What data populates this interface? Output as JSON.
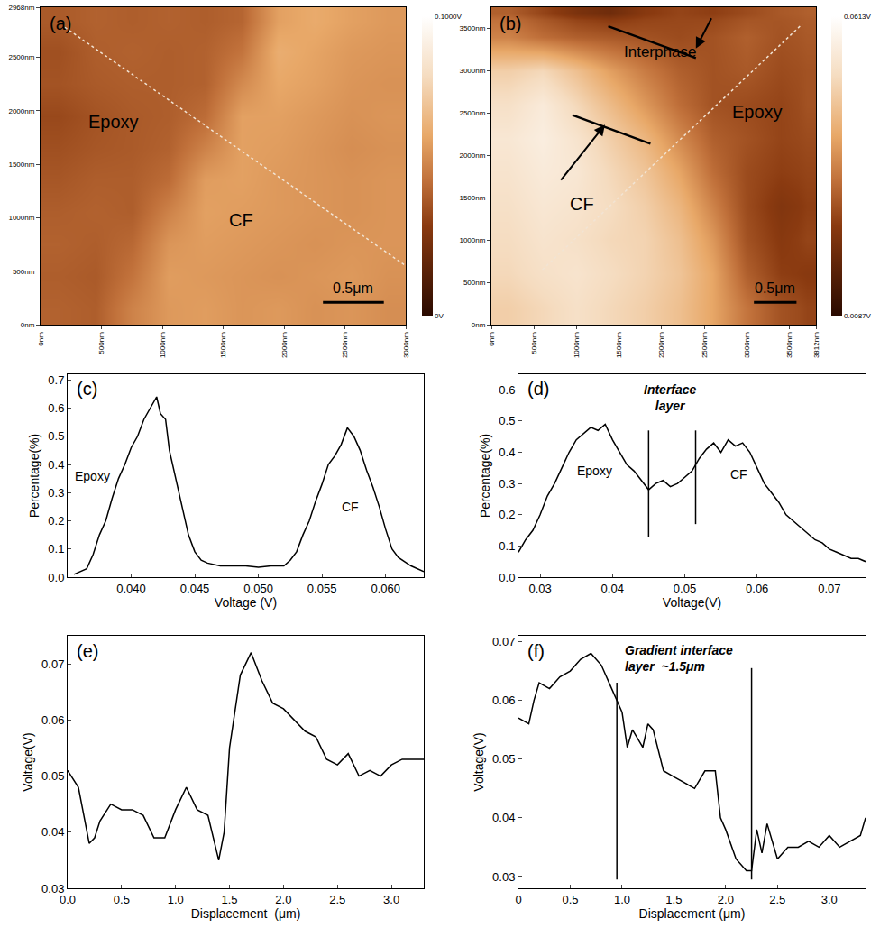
{
  "chart_data": [
    {
      "panel": "(a)",
      "type": "heatmap",
      "x_edges": [
        0,
        300,
        600,
        900,
        1200,
        1500,
        1800,
        2100,
        2400,
        2700,
        3000
      ],
      "y_edges": [
        0,
        300,
        600,
        900,
        1200,
        1500,
        1800,
        2100,
        2400,
        2700,
        2968
      ],
      "z": [
        [
          0.041,
          0.04,
          0.05,
          0.056,
          0.057,
          0.055,
          0.056,
          0.054,
          0.055,
          0.053
        ],
        [
          0.04,
          0.039,
          0.046,
          0.057,
          0.056,
          0.055,
          0.054,
          0.055,
          0.056,
          0.054
        ],
        [
          0.041,
          0.04,
          0.043,
          0.055,
          0.057,
          0.056,
          0.055,
          0.054,
          0.055,
          0.055
        ],
        [
          0.04,
          0.041,
          0.04,
          0.05,
          0.058,
          0.057,
          0.056,
          0.055,
          0.054,
          0.055
        ],
        [
          0.038,
          0.04,
          0.04,
          0.044,
          0.057,
          0.058,
          0.056,
          0.055,
          0.054,
          0.055
        ],
        [
          0.036,
          0.038,
          0.039,
          0.041,
          0.05,
          0.058,
          0.057,
          0.055,
          0.053,
          0.054
        ],
        [
          0.034,
          0.037,
          0.039,
          0.04,
          0.044,
          0.058,
          0.058,
          0.056,
          0.054,
          0.055
        ],
        [
          0.037,
          0.039,
          0.04,
          0.04,
          0.041,
          0.052,
          0.06,
          0.058,
          0.055,
          0.054
        ],
        [
          0.036,
          0.04,
          0.041,
          0.04,
          0.041,
          0.046,
          0.062,
          0.059,
          0.056,
          0.055
        ],
        [
          0.039,
          0.041,
          0.04,
          0.041,
          0.04,
          0.042,
          0.058,
          0.061,
          0.058,
          0.056
        ]
      ],
      "zlim": [
        0,
        0.1
      ],
      "zticks": [
        {
          "value": 0,
          "label": "0V"
        },
        {
          "value": 0.1,
          "label": "0.1000V"
        }
      ],
      "xlim": [
        0,
        3000
      ],
      "xticks": [
        {
          "value": 0,
          "label": "0nm"
        },
        {
          "value": 500,
          "label": "500nm"
        },
        {
          "value": 1000,
          "label": "1000nm"
        },
        {
          "value": 1500,
          "label": "1500nm"
        },
        {
          "value": 2000,
          "label": "2000nm"
        },
        {
          "value": 2500,
          "label": "2500nm"
        },
        {
          "value": 3000,
          "label": "3000nm"
        }
      ],
      "ylim": [
        0,
        2968
      ],
      "yticks": [
        {
          "value": 0,
          "label": "0nm"
        },
        {
          "value": 500,
          "label": "500nm"
        },
        {
          "value": 1000,
          "label": "1000nm"
        },
        {
          "value": 1500,
          "label": "1500nm"
        },
        {
          "value": 2000,
          "label": "2000nm"
        },
        {
          "value": 2500,
          "label": "2500nm"
        },
        {
          "value": 2968,
          "label": "2968nm"
        }
      ],
      "profile": {
        "x": [
          200,
          3000
        ],
        "y": [
          2780,
          550
        ],
        "line_style": "dot"
      },
      "scale_bar": {
        "label": "0.5μm",
        "length": 500
      },
      "annotations": [
        {
          "lines": [
            "Epoxy"
          ]
        },
        {
          "lines": [
            "CF"
          ]
        }
      ]
    },
    {
      "panel": "(b)",
      "type": "heatmap",
      "x_edges": [
        0,
        400,
        800,
        1200,
        1600,
        2000,
        2400,
        2800,
        3200,
        3600,
        3812
      ],
      "y_edges": [
        0,
        400,
        800,
        1200,
        1600,
        2000,
        2400,
        2800,
        3200,
        3600,
        3750
      ],
      "z": [
        [
          0.048,
          0.05,
          0.052,
          0.05,
          0.048,
          0.045,
          0.04,
          0.033,
          0.028,
          0.026
        ],
        [
          0.05,
          0.052,
          0.053,
          0.051,
          0.049,
          0.046,
          0.04,
          0.03,
          0.025,
          0.024
        ],
        [
          0.051,
          0.053,
          0.052,
          0.05,
          0.049,
          0.045,
          0.038,
          0.028,
          0.024,
          0.026
        ],
        [
          0.052,
          0.054,
          0.053,
          0.051,
          0.048,
          0.043,
          0.035,
          0.027,
          0.023,
          0.025
        ],
        [
          0.053,
          0.055,
          0.054,
          0.05,
          0.046,
          0.04,
          0.032,
          0.027,
          0.025,
          0.026
        ],
        [
          0.054,
          0.056,
          0.053,
          0.048,
          0.043,
          0.036,
          0.03,
          0.028,
          0.026,
          0.027
        ],
        [
          0.052,
          0.055,
          0.05,
          0.044,
          0.038,
          0.032,
          0.028,
          0.027,
          0.026,
          0.028
        ],
        [
          0.048,
          0.05,
          0.045,
          0.039,
          0.034,
          0.03,
          0.028,
          0.029,
          0.027,
          0.028
        ],
        [
          0.035,
          0.032,
          0.03,
          0.029,
          0.028,
          0.027,
          0.028,
          0.03,
          0.028,
          0.029
        ],
        [
          0.03,
          0.026,
          0.022,
          0.02,
          0.024,
          0.026,
          0.025,
          0.027,
          0.029,
          0.03
        ]
      ],
      "zlim": [
        0.0087,
        0.0613
      ],
      "zticks": [
        {
          "value": 0.0087,
          "label": "0.0087V"
        },
        {
          "value": 0.0613,
          "label": "0.0613V"
        }
      ],
      "xlim": [
        0,
        3812
      ],
      "xticks": [
        {
          "value": 0,
          "label": "0nm"
        },
        {
          "value": 500,
          "label": "500nm"
        },
        {
          "value": 1000,
          "label": "1000nm"
        },
        {
          "value": 1500,
          "label": "1500nm"
        },
        {
          "value": 2000,
          "label": "2000nm"
        },
        {
          "value": 2500,
          "label": "2500nm"
        },
        {
          "value": 3000,
          "label": "3000nm"
        },
        {
          "value": 3500,
          "label": "3500nm"
        },
        {
          "value": 3812,
          "label": "3812nm"
        }
      ],
      "ylim": [
        0,
        3750
      ],
      "yticks": [
        {
          "value": 0,
          "label": "0nm"
        },
        {
          "value": 500,
          "label": "500nm"
        },
        {
          "value": 1000,
          "label": "1000nm"
        },
        {
          "value": 1500,
          "label": "1500nm"
        },
        {
          "value": 2000,
          "label": "2000nm"
        },
        {
          "value": 2500,
          "label": "2500nm"
        },
        {
          "value": 3000,
          "label": "3000nm"
        },
        {
          "value": 3500,
          "label": "3500nm"
        }
      ],
      "profile": {
        "x": [
          600,
          3650
        ],
        "y": [
          650,
          3550
        ],
        "line_style": "dot"
      },
      "scale_bar": {
        "label": "0.5μm",
        "length": 500
      },
      "annotations": [
        {
          "lines": [
            "Epoxy"
          ]
        },
        {
          "lines": [
            "CF"
          ]
        },
        {
          "lines": [
            "Interphase"
          ]
        }
      ]
    },
    {
      "panel": "(c)",
      "type": "line",
      "color": "#000000",
      "grid": false,
      "x": [
        0.0355,
        0.0365,
        0.037,
        0.0375,
        0.038,
        0.0385,
        0.039,
        0.0395,
        0.04,
        0.0405,
        0.041,
        0.0415,
        0.042,
        0.0423,
        0.0427,
        0.043,
        0.0435,
        0.044,
        0.0445,
        0.045,
        0.0455,
        0.046,
        0.047,
        0.048,
        0.049,
        0.05,
        0.051,
        0.052,
        0.0525,
        0.053,
        0.0535,
        0.054,
        0.0545,
        0.055,
        0.0555,
        0.056,
        0.0565,
        0.057,
        0.0575,
        0.058,
        0.0585,
        0.059,
        0.0595,
        0.06,
        0.0605,
        0.061,
        0.062,
        0.063
      ],
      "values": [
        0.01,
        0.03,
        0.08,
        0.15,
        0.2,
        0.28,
        0.35,
        0.4,
        0.46,
        0.5,
        0.56,
        0.6,
        0.64,
        0.58,
        0.56,
        0.45,
        0.35,
        0.25,
        0.15,
        0.09,
        0.06,
        0.05,
        0.04,
        0.04,
        0.04,
        0.035,
        0.04,
        0.04,
        0.06,
        0.09,
        0.15,
        0.2,
        0.27,
        0.33,
        0.4,
        0.43,
        0.47,
        0.53,
        0.5,
        0.45,
        0.38,
        0.32,
        0.25,
        0.17,
        0.1,
        0.07,
        0.04,
        0.02
      ],
      "xlim": [
        0.035,
        0.063
      ],
      "xticks": [
        {
          "value": 0.04,
          "label": "0.040"
        },
        {
          "value": 0.045,
          "label": "0.045"
        },
        {
          "value": 0.05,
          "label": "0.050"
        },
        {
          "value": 0.055,
          "label": "0.055"
        },
        {
          "value": 0.06,
          "label": "0.060"
        }
      ],
      "ylim": [
        0,
        0.72
      ],
      "yticks": [
        {
          "value": 0,
          "label": "0.0"
        },
        0.1,
        0.2,
        0.3,
        0.4,
        0.5,
        0.6,
        0.7
      ],
      "x_label": "Voltage (V)",
      "y_label": "Percentage(%)",
      "annotations": [
        {
          "lines": [
            "Epoxy"
          ]
        },
        {
          "lines": [
            "CF"
          ]
        }
      ]
    },
    {
      "panel": "(d)",
      "type": "line",
      "color": "#000000",
      "grid": false,
      "x": [
        0.027,
        0.028,
        0.029,
        0.03,
        0.031,
        0.032,
        0.033,
        0.034,
        0.035,
        0.036,
        0.037,
        0.038,
        0.039,
        0.04,
        0.041,
        0.042,
        0.043,
        0.044,
        0.045,
        0.046,
        0.047,
        0.048,
        0.049,
        0.05,
        0.051,
        0.052,
        0.053,
        0.054,
        0.055,
        0.056,
        0.057,
        0.058,
        0.059,
        0.06,
        0.061,
        0.062,
        0.063,
        0.064,
        0.065,
        0.066,
        0.067,
        0.068,
        0.069,
        0.07,
        0.071,
        0.072,
        0.073,
        0.074,
        0.075
      ],
      "values": [
        0.08,
        0.12,
        0.15,
        0.2,
        0.26,
        0.3,
        0.35,
        0.4,
        0.44,
        0.46,
        0.48,
        0.47,
        0.49,
        0.44,
        0.4,
        0.36,
        0.34,
        0.31,
        0.28,
        0.3,
        0.31,
        0.29,
        0.3,
        0.32,
        0.34,
        0.38,
        0.41,
        0.43,
        0.4,
        0.44,
        0.42,
        0.43,
        0.4,
        0.35,
        0.3,
        0.27,
        0.24,
        0.2,
        0.18,
        0.16,
        0.14,
        0.12,
        0.11,
        0.09,
        0.08,
        0.07,
        0.06,
        0.06,
        0.05
      ],
      "xlim": [
        0.027,
        0.075
      ],
      "xticks": [
        0.03,
        0.04,
        0.05,
        0.06,
        0.07
      ],
      "ylim": [
        0,
        0.65
      ],
      "yticks": [
        {
          "value": 0,
          "label": "0.0"
        },
        0.1,
        0.2,
        0.3,
        0.4,
        0.5,
        0.6
      ],
      "x_label": "Voltage(V)",
      "y_label": "Percentage(%)",
      "interface_lines": [
        {
          "x": 0.045,
          "y": [
            0.13,
            0.47
          ]
        },
        {
          "x": 0.0515,
          "y": [
            0.17,
            0.47
          ]
        }
      ],
      "annotations": [
        {
          "lines": [
            "Epoxy"
          ]
        },
        {
          "lines": [
            "CF"
          ]
        },
        {
          "lines": [
            "Interface",
            "layer"
          ]
        }
      ]
    },
    {
      "panel": "(e)",
      "type": "line",
      "color": "#000000",
      "grid": false,
      "x": [
        0,
        0.1,
        0.2,
        0.25,
        0.3,
        0.4,
        0.5,
        0.6,
        0.7,
        0.8,
        0.9,
        1.0,
        1.1,
        1.15,
        1.2,
        1.3,
        1.4,
        1.45,
        1.5,
        1.6,
        1.7,
        1.8,
        1.9,
        2.0,
        2.1,
        2.2,
        2.3,
        2.4,
        2.5,
        2.6,
        2.7,
        2.8,
        2.9,
        3.0,
        3.1,
        3.2,
        3.3
      ],
      "values": [
        0.051,
        0.048,
        0.038,
        0.039,
        0.042,
        0.045,
        0.044,
        0.044,
        0.043,
        0.039,
        0.039,
        0.044,
        0.048,
        0.046,
        0.044,
        0.043,
        0.035,
        0.04,
        0.055,
        0.068,
        0.072,
        0.067,
        0.063,
        0.062,
        0.06,
        0.058,
        0.057,
        0.053,
        0.052,
        0.054,
        0.05,
        0.051,
        0.05,
        0.052,
        0.053,
        0.053,
        0.053
      ],
      "xlim": [
        0,
        3.3
      ],
      "xticks": [
        {
          "value": 0,
          "label": "0.0"
        },
        0.5,
        {
          "value": 1,
          "label": "1.0"
        },
        1.5,
        {
          "value": 2,
          "label": "2.0"
        },
        2.5,
        {
          "value": 3,
          "label": "3.0"
        }
      ],
      "ylim": [
        0.03,
        0.075
      ],
      "yticks": [
        0.03,
        0.04,
        0.05,
        0.06,
        0.07
      ],
      "x_label": "Displacement  (μm)",
      "y_label": "Voltage(V)",
      "annotations": []
    },
    {
      "panel": "(f)",
      "type": "line",
      "color": "#000000",
      "grid": false,
      "x": [
        0,
        0.1,
        0.15,
        0.2,
        0.3,
        0.4,
        0.5,
        0.6,
        0.7,
        0.8,
        0.9,
        0.95,
        1.0,
        1.05,
        1.1,
        1.2,
        1.25,
        1.3,
        1.4,
        1.5,
        1.6,
        1.7,
        1.8,
        1.9,
        1.95,
        2.0,
        2.1,
        2.2,
        2.25,
        2.3,
        2.35,
        2.4,
        2.5,
        2.6,
        2.7,
        2.8,
        2.9,
        3.0,
        3.1,
        3.2,
        3.3,
        3.35
      ],
      "values": [
        0.057,
        0.056,
        0.06,
        0.063,
        0.062,
        0.064,
        0.065,
        0.067,
        0.068,
        0.066,
        0.062,
        0.06,
        0.058,
        0.052,
        0.055,
        0.052,
        0.056,
        0.055,
        0.048,
        0.047,
        0.046,
        0.045,
        0.048,
        0.048,
        0.04,
        0.038,
        0.033,
        0.031,
        0.031,
        0.038,
        0.034,
        0.039,
        0.033,
        0.035,
        0.035,
        0.036,
        0.035,
        0.037,
        0.035,
        0.036,
        0.037,
        0.04
      ],
      "xlim": [
        0,
        3.35
      ],
      "xticks": [
        0,
        0.5,
        {
          "value": 1,
          "label": "1.0"
        },
        1.5,
        {
          "value": 2,
          "label": "2.0"
        },
        2.5,
        {
          "value": 3,
          "label": "3.0"
        }
      ],
      "ylim": [
        0.028,
        0.071
      ],
      "yticks": [
        0.03,
        0.04,
        0.05,
        0.06,
        0.07
      ],
      "x_label": "Displacement (μm)",
      "y_label": "Voltage(V)",
      "interface_lines": [
        {
          "x": 0.95,
          "y": [
            0.0295,
            0.063
          ]
        },
        {
          "x": 2.25,
          "y": [
            0.0295,
            0.0655
          ]
        }
      ],
      "annotations": [
        {
          "lines": [
            "Gradient interface",
            "layer  ~1.5μm"
          ]
        }
      ]
    }
  ]
}
